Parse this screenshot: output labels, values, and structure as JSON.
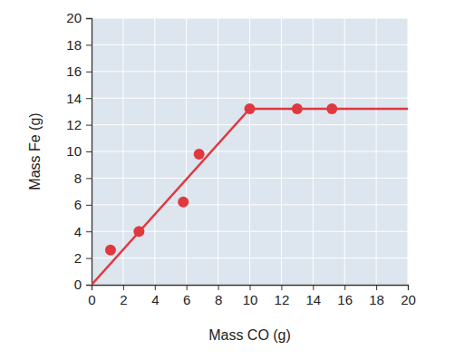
{
  "chart_data": {
    "type": "scatter",
    "x_label": "Mass CO (g)",
    "y_label": "Mass Fe (g)",
    "xlim": [
      0,
      20
    ],
    "xticks": [
      0,
      2,
      4,
      6,
      8,
      10,
      12,
      14,
      16,
      18,
      20
    ],
    "ylim": [
      0,
      20
    ],
    "yticks": [
      0,
      2,
      4,
      6,
      8,
      10,
      12,
      14,
      16,
      18,
      20
    ],
    "grid": true,
    "series": [
      {
        "type": "scatter",
        "marker": "circle",
        "color": "#e0383e",
        "x": [
          1.2,
          3.0,
          5.8,
          6.8,
          10.0,
          13.0,
          15.2
        ],
        "values": [
          2.6,
          4.0,
          6.2,
          9.8,
          13.2,
          13.2,
          13.2
        ]
      },
      {
        "type": "line",
        "line_style": "solid",
        "color": "#e0383e",
        "x": [
          0,
          10,
          20
        ],
        "values": [
          0,
          13.2,
          13.2
        ]
      }
    ]
  }
}
